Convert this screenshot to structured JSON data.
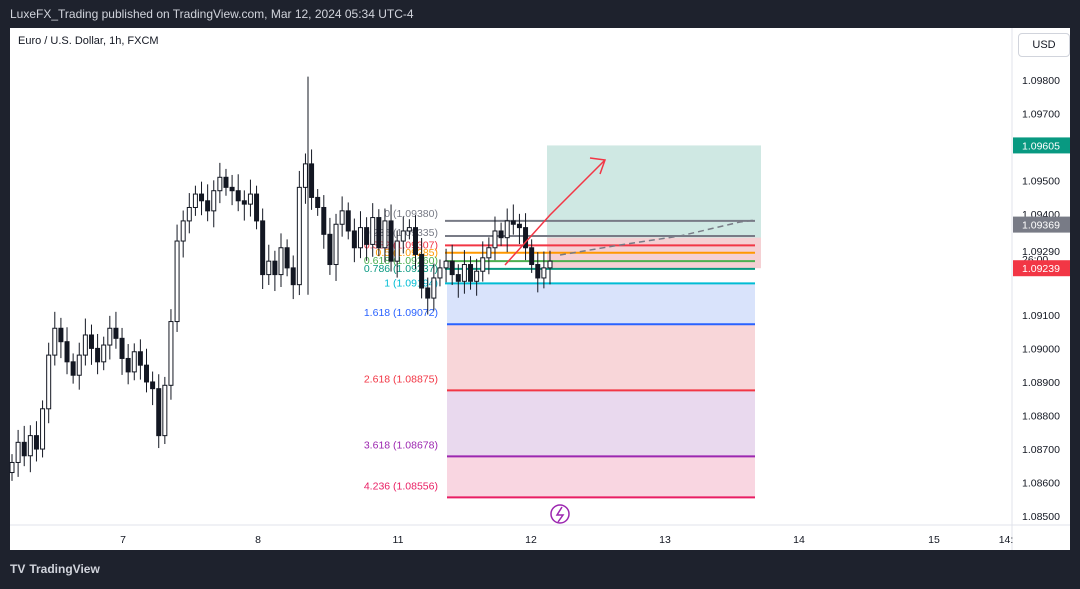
{
  "header": {
    "publish_line": "LuxeFX_Trading published on TradingView.com, Mar 12, 2024 05:34 UTC-4"
  },
  "chart_title": "Euro / U.S. Dollar, 1h, FXCM",
  "currency_button": "USD",
  "footer": {
    "brand": "TradingView",
    "logo_glyph": "TV"
  },
  "colors": {
    "up": "#131722",
    "down": "#131722",
    "target_zone": "#cfe8e3",
    "stop_zone": "#f5d0d3",
    "teal_badge": "#089981",
    "gray_badge": "#787b86",
    "red_badge": "#f23645"
  },
  "chart_data": {
    "type": "candlestick",
    "title": "Euro / U.S. Dollar, 1h, FXCM",
    "ylim": [
      1.0845,
      1.099
    ],
    "y_ticks": [
      "1.09800",
      "1.09700",
      "1.09500",
      "1.09400",
      "1.09290",
      "1.09100",
      "1.09000",
      "1.08900",
      "1.08800",
      "1.08700",
      "1.08600",
      "1.08500"
    ],
    "x_ticks": [
      "7",
      "8",
      "11",
      "12",
      "13",
      "14",
      "15",
      "14:"
    ],
    "price_badges": [
      {
        "label": "1.09605",
        "value": 1.09605,
        "color": "teal"
      },
      {
        "label": "1.09369",
        "value": 1.09369,
        "color": "gray"
      },
      {
        "label": "26:00",
        "value": 1.09266,
        "color": "none"
      },
      {
        "label": "1.09239",
        "value": 1.09239,
        "color": "red"
      }
    ],
    "fib_levels": [
      {
        "label": "0.236 (1.09335)",
        "value": 1.09335,
        "color": "#787b86"
      },
      {
        "label": "0.382 (1.09307)",
        "value": 1.09307,
        "color": "#f23645"
      },
      {
        "label": "0.5 (1.09285)",
        "value": 1.09285,
        "color": "#ff9800"
      },
      {
        "label": "0.618 (1.09260)",
        "value": 1.0926,
        "color": "#4caf50"
      },
      {
        "label": "0.786 (1.09237)",
        "value": 1.09237,
        "color": "#089981"
      },
      {
        "label": "1 (1.09194)",
        "value": 1.09194,
        "color": "#00bcd4"
      },
      {
        "label": "1.618 (1.09072)",
        "value": 1.09072,
        "color": "#2962ff"
      },
      {
        "label": "2.618 (1.08875)",
        "value": 1.08875,
        "color": "#f23645"
      },
      {
        "label": "3.618 (1.08678)",
        "value": 1.08678,
        "color": "#9c27b0"
      },
      {
        "label": "4.236 (1.08556)",
        "value": 1.08556,
        "color": "#e91e63"
      }
    ],
    "fib_zero_label": "0 (1.09380)",
    "candles_close": [
      1.0866,
      1.0872,
      1.0868,
      1.0874,
      1.087,
      1.0882,
      1.0898,
      1.0906,
      1.0902,
      1.0896,
      1.0892,
      1.0898,
      1.0904,
      1.09,
      1.0896,
      1.0901,
      1.0906,
      1.0903,
      1.0897,
      1.0893,
      1.0899,
      1.0895,
      1.089,
      1.0888,
      1.0874,
      1.0889,
      1.0908,
      1.0932,
      1.0938,
      1.0942,
      1.0946,
      1.0944,
      1.0941,
      1.0947,
      1.0951,
      1.0948,
      1.0947,
      1.0944,
      1.0943,
      1.0946,
      1.0938,
      1.0922,
      1.0926,
      1.0922,
      1.093,
      1.0924,
      1.0919,
      1.0948,
      1.0955,
      1.0945,
      1.0942,
      1.0934,
      1.0925,
      1.0937,
      1.0941,
      1.0935,
      1.093,
      1.0936,
      1.0931,
      1.0939,
      1.093,
      1.0938,
      1.0926,
      1.0932,
      1.0935,
      1.0936,
      1.0928,
      1.0918,
      1.0915,
      1.0921,
      1.0924,
      1.0926,
      1.0922,
      1.092,
      1.0925,
      1.092,
      1.0923,
      1.0927,
      1.093,
      1.0935,
      1.0933,
      1.0938,
      1.0937,
      1.0936,
      1.093,
      1.0925,
      1.0921,
      1.0924,
      1.0926
    ],
    "trade_box": {
      "entry": 1.09285,
      "target": 1.09605,
      "stop": 1.09239
    }
  }
}
